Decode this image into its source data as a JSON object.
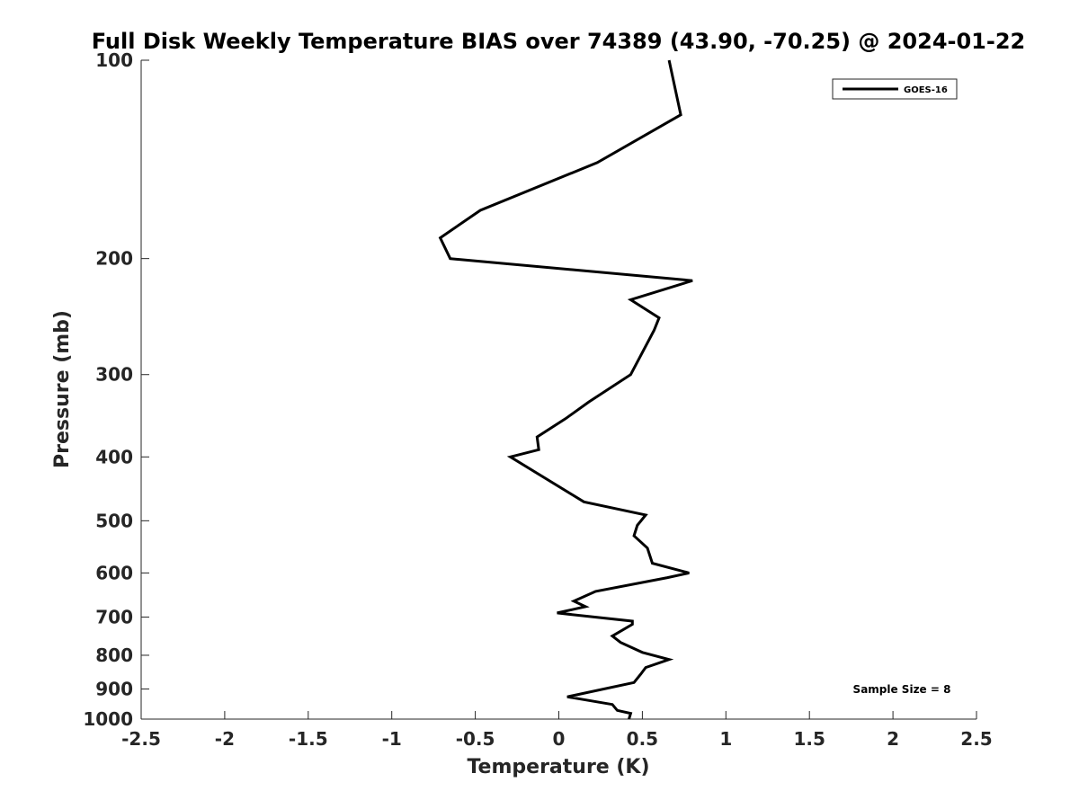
{
  "chart_data": {
    "type": "line",
    "title": "Full Disk Weekly Temperature BIAS over 74389 (43.90, -70.25) @ 2024-01-22",
    "xlabel": "Temperature (K)",
    "ylabel": "Pressure (mb)",
    "xlim": [
      -2.5,
      2.5
    ],
    "ylim": [
      1000,
      100
    ],
    "yscale": "log",
    "y_reversed": true,
    "x_ticks": [
      "-2.5",
      "-2",
      "-1.5",
      "-1",
      "-0.5",
      "0",
      "0.5",
      "1",
      "1.5",
      "2",
      "2.5"
    ],
    "x_tick_values": [
      -2.5,
      -2,
      -1.5,
      -1,
      -0.5,
      0,
      0.5,
      1,
      1.5,
      2,
      2.5
    ],
    "y_ticks": [
      "100",
      "200",
      "300",
      "400",
      "500",
      "600",
      "700",
      "800",
      "900",
      "1000"
    ],
    "y_tick_values": [
      100,
      200,
      300,
      400,
      500,
      600,
      700,
      800,
      900,
      1000
    ],
    "grid": false,
    "legend_position": "top-right",
    "series": [
      {
        "name": "GOES-16",
        "color": "#000000",
        "points": [
          {
            "x": 0.66,
            "y": 100
          },
          {
            "x": 0.73,
            "y": 121
          },
          {
            "x": 0.23,
            "y": 143
          },
          {
            "x": -0.47,
            "y": 169
          },
          {
            "x": -0.71,
            "y": 186
          },
          {
            "x": -0.65,
            "y": 200
          },
          {
            "x": 0.8,
            "y": 216
          },
          {
            "x": 0.43,
            "y": 231
          },
          {
            "x": 0.6,
            "y": 246
          },
          {
            "x": 0.57,
            "y": 257
          },
          {
            "x": 0.43,
            "y": 300
          },
          {
            "x": 0.18,
            "y": 330
          },
          {
            "x": 0.04,
            "y": 350
          },
          {
            "x": -0.13,
            "y": 373
          },
          {
            "x": -0.12,
            "y": 390
          },
          {
            "x": -0.29,
            "y": 400
          },
          {
            "x": 0.15,
            "y": 468
          },
          {
            "x": 0.52,
            "y": 490
          },
          {
            "x": 0.47,
            "y": 508
          },
          {
            "x": 0.45,
            "y": 527
          },
          {
            "x": 0.53,
            "y": 550
          },
          {
            "x": 0.56,
            "y": 580
          },
          {
            "x": 0.78,
            "y": 600
          },
          {
            "x": 0.65,
            "y": 610
          },
          {
            "x": 0.22,
            "y": 640
          },
          {
            "x": 0.09,
            "y": 662
          },
          {
            "x": 0.16,
            "y": 675
          },
          {
            "x": -0.01,
            "y": 690
          },
          {
            "x": 0.44,
            "y": 710
          },
          {
            "x": 0.44,
            "y": 718
          },
          {
            "x": 0.32,
            "y": 748
          },
          {
            "x": 0.37,
            "y": 765
          },
          {
            "x": 0.5,
            "y": 792
          },
          {
            "x": 0.66,
            "y": 812
          },
          {
            "x": 0.52,
            "y": 835
          },
          {
            "x": 0.49,
            "y": 855
          },
          {
            "x": 0.45,
            "y": 880
          },
          {
            "x": 0.05,
            "y": 925
          },
          {
            "x": 0.32,
            "y": 950
          },
          {
            "x": 0.35,
            "y": 970
          },
          {
            "x": 0.43,
            "y": 980
          },
          {
            "x": 0.42,
            "y": 1000
          }
        ]
      }
    ],
    "annotation": "Sample Size = 8"
  }
}
